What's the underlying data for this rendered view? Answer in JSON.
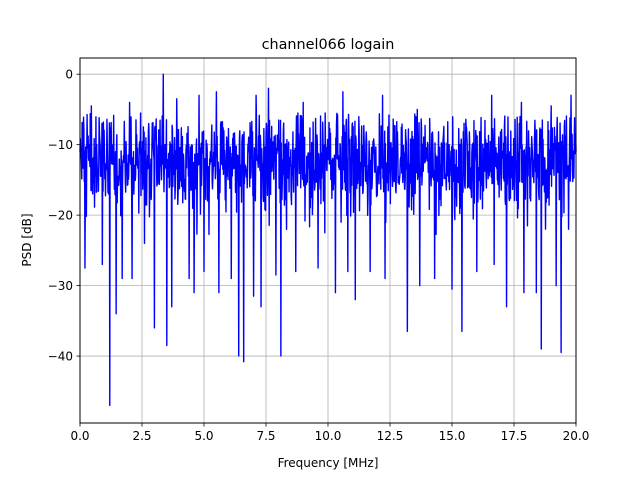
{
  "chart_data": {
    "type": "line",
    "title": "channel066 logain",
    "xlabel": "Frequency [MHz]",
    "ylabel": "PSD [dB]",
    "xlim": [
      0,
      20
    ],
    "ylim": [
      -49.5,
      2.3
    ],
    "xticks": [
      0,
      2.5,
      5,
      7.5,
      10,
      12.5,
      15,
      17.5,
      20
    ],
    "xtick_labels": [
      "0.0",
      "2.5",
      "5.0",
      "7.5",
      "10.0",
      "12.5",
      "15.0",
      "17.5",
      "20.0"
    ],
    "yticks": [
      0,
      -10,
      -20,
      -30,
      -40
    ],
    "ytick_labels": [
      "0",
      "−10",
      "−20",
      "−30",
      "−40"
    ],
    "grid": true,
    "series": [
      {
        "color": "#0000ff",
        "baseline_db": -12.5,
        "spread_db": 5.5,
        "upper_envelope_db": -7,
        "lower_envelope_db": -21,
        "dips": [
          {
            "x": 0.2,
            "y": -27.5
          },
          {
            "x": 0.9,
            "y": -27
          },
          {
            "x": 1.2,
            "y": -47
          },
          {
            "x": 1.45,
            "y": -34
          },
          {
            "x": 1.7,
            "y": -29
          },
          {
            "x": 2.1,
            "y": -29
          },
          {
            "x": 2.6,
            "y": -24
          },
          {
            "x": 3.0,
            "y": -36
          },
          {
            "x": 3.5,
            "y": -38.5
          },
          {
            "x": 3.7,
            "y": -33
          },
          {
            "x": 4.4,
            "y": -29
          },
          {
            "x": 4.6,
            "y": -31
          },
          {
            "x": 5.0,
            "y": -28
          },
          {
            "x": 5.6,
            "y": -31
          },
          {
            "x": 6.1,
            "y": -29
          },
          {
            "x": 6.4,
            "y": -40
          },
          {
            "x": 6.6,
            "y": -40.8
          },
          {
            "x": 7.0,
            "y": -31.5
          },
          {
            "x": 7.3,
            "y": -33
          },
          {
            "x": 7.9,
            "y": -28.5
          },
          {
            "x": 8.1,
            "y": -40
          },
          {
            "x": 8.7,
            "y": -28
          },
          {
            "x": 9.0,
            "y": -27
          },
          {
            "x": 9.6,
            "y": -27.5
          },
          {
            "x": 10.3,
            "y": -31
          },
          {
            "x": 10.8,
            "y": -28
          },
          {
            "x": 11.1,
            "y": -32
          },
          {
            "x": 11.7,
            "y": -28
          },
          {
            "x": 12.3,
            "y": -29
          },
          {
            "x": 13.2,
            "y": -36.5
          },
          {
            "x": 13.7,
            "y": -30
          },
          {
            "x": 14.3,
            "y": -29
          },
          {
            "x": 15.0,
            "y": -30.5
          },
          {
            "x": 15.4,
            "y": -36.5
          },
          {
            "x": 16.0,
            "y": -28
          },
          {
            "x": 16.7,
            "y": -27
          },
          {
            "x": 17.2,
            "y": -33
          },
          {
            "x": 17.9,
            "y": -31
          },
          {
            "x": 18.4,
            "y": -31
          },
          {
            "x": 18.6,
            "y": -39
          },
          {
            "x": 19.2,
            "y": -30
          },
          {
            "x": 19.4,
            "y": -39.5
          },
          {
            "x": 19.7,
            "y": -22
          }
        ],
        "peaks": [
          {
            "x": 0.45,
            "y": -4.5
          },
          {
            "x": 2.0,
            "y": -4
          },
          {
            "x": 3.35,
            "y": 0
          },
          {
            "x": 3.9,
            "y": -3.5
          },
          {
            "x": 4.8,
            "y": -3
          },
          {
            "x": 5.5,
            "y": -2.5
          },
          {
            "x": 7.1,
            "y": -3
          },
          {
            "x": 7.6,
            "y": -2
          },
          {
            "x": 9.0,
            "y": -4
          },
          {
            "x": 10.6,
            "y": -2.5
          },
          {
            "x": 12.2,
            "y": -3
          },
          {
            "x": 13.6,
            "y": -5
          },
          {
            "x": 16.6,
            "y": -3
          },
          {
            "x": 17.8,
            "y": -4
          },
          {
            "x": 19.0,
            "y": -4.5
          },
          {
            "x": 19.8,
            "y": -3
          }
        ]
      }
    ]
  }
}
